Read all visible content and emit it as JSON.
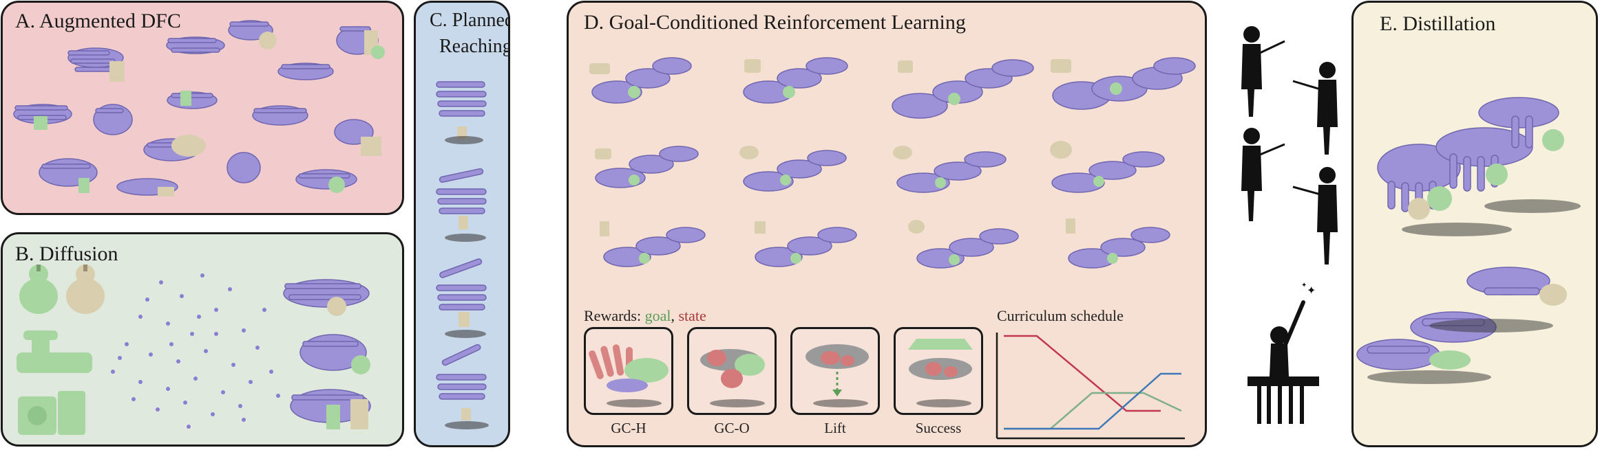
{
  "panels": {
    "a": {
      "title": "A. Augmented DFC"
    },
    "b": {
      "title": "B. Diffusion"
    },
    "c": {
      "title_line1": "C. Planned",
      "title_line2": "Reaching"
    },
    "d": {
      "title": "D. Goal-Conditioned Reinforcement Learning"
    },
    "e": {
      "title": "E.  Distillation"
    }
  },
  "rewards": {
    "prefix": "Rewards: ",
    "goal": "goal",
    "separator": ", ",
    "state": "state",
    "items": [
      {
        "label": "GC-H"
      },
      {
        "label": "GC-O"
      },
      {
        "label": "Lift"
      },
      {
        "label": "Success"
      }
    ]
  },
  "curriculum": {
    "title": "Curriculum schedule"
  },
  "colors": {
    "panel_a": "#f2cccc",
    "panel_b": "#dfe9dd",
    "panel_c": "#c9d9ec",
    "panel_d": "#f6dfd3",
    "panel_e": "#f6f0dc",
    "hand": "#9d92d8",
    "object_green": "#a8d6a0",
    "object_tan": "#d9cfae",
    "goal_text": "#5a9e5a",
    "state_text": "#a83a3a",
    "curve_red": "#c0394f",
    "curve_green": "#7fb08a",
    "curve_blue": "#3f78b6"
  }
}
